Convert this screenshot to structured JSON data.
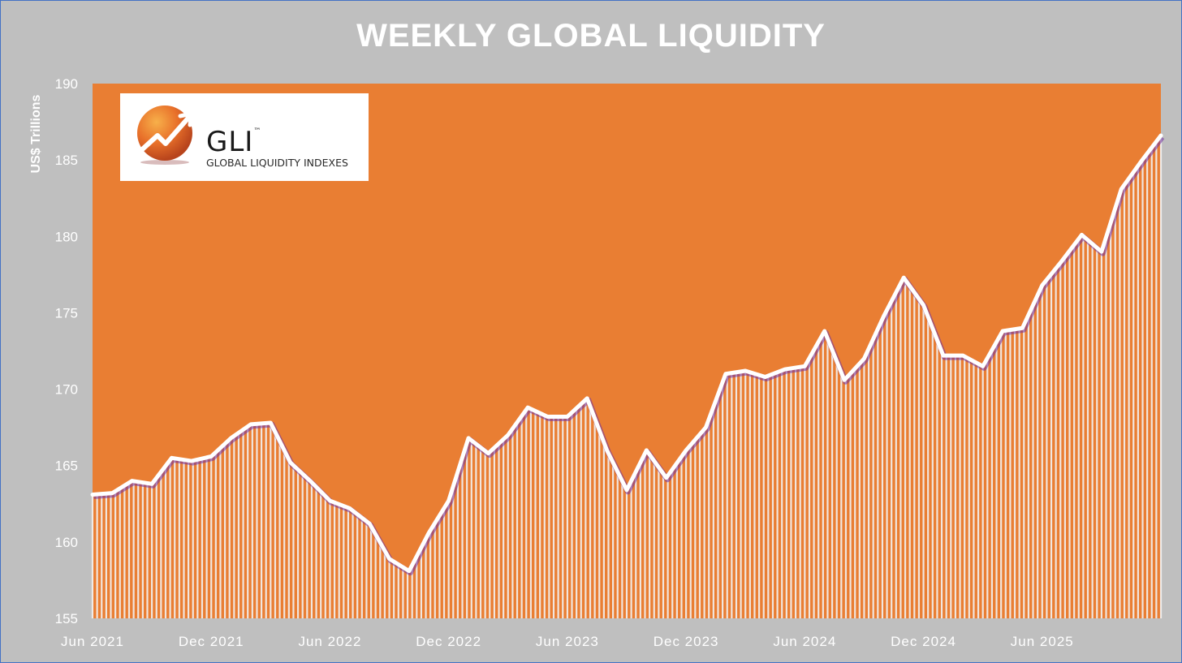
{
  "title": "WEEKLY GLOBAL LIQUIDITY",
  "logo": {
    "name": "GLI",
    "trademark": "™",
    "subtitle": "GLOBAL LIQUIDITY INDEXES"
  },
  "colors": {
    "background": "#bfbfbf",
    "plot_area": "#e97e33",
    "bars": "#f2f2f2",
    "line": "#ffffff",
    "line_shadow": "#7030a0"
  },
  "chart_data": {
    "type": "area",
    "title": "WEEKLY GLOBAL LIQUIDITY",
    "xlabel": "",
    "ylabel": "US$ Trillions",
    "ylim": [
      155,
      190
    ],
    "yticks": [
      155,
      160,
      165,
      170,
      175,
      180,
      185,
      190
    ],
    "xlim": [
      "2021-06",
      "2025-12"
    ],
    "xticks": [
      "Jun 2021",
      "Dec 2021",
      "Jun 2022",
      "Dec 2022",
      "Jun 2023",
      "Dec 2023",
      "Jun 2024",
      "Dec 2024",
      "Jun 2025"
    ],
    "grid": false,
    "legend": "none",
    "series": [
      {
        "x": [
          "2021-06",
          "2021-07",
          "2021-08",
          "2021-09",
          "2021-10",
          "2021-11",
          "2021-12",
          "2022-01",
          "2022-02",
          "2022-03",
          "2022-04",
          "2022-05",
          "2022-06",
          "2022-07",
          "2022-08",
          "2022-09",
          "2022-10",
          "2022-11",
          "2022-12",
          "2023-01",
          "2023-02",
          "2023-03",
          "2023-04",
          "2023-05",
          "2023-06",
          "2023-07",
          "2023-08",
          "2023-09",
          "2023-10",
          "2023-11",
          "2023-12",
          "2024-01",
          "2024-02",
          "2024-03",
          "2024-04",
          "2024-05",
          "2024-06",
          "2024-07",
          "2024-08",
          "2024-09",
          "2024-10",
          "2024-11",
          "2024-12",
          "2025-01",
          "2025-02",
          "2025-03",
          "2025-04",
          "2025-05",
          "2025-06",
          "2025-07",
          "2025-08",
          "2025-09",
          "2025-10",
          "2025-11",
          "2025-12"
        ],
        "values": [
          163.1,
          163.2,
          164.0,
          163.8,
          165.5,
          165.3,
          165.6,
          166.8,
          167.7,
          167.8,
          165.2,
          164.0,
          162.7,
          162.2,
          161.2,
          158.9,
          158.1,
          160.6,
          162.7,
          166.8,
          165.8,
          167.0,
          168.8,
          168.2,
          168.2,
          169.4,
          166.0,
          163.4,
          166.0,
          164.2,
          166.0,
          167.5,
          171.0,
          171.2,
          170.8,
          171.3,
          171.5,
          173.8,
          170.6,
          172.0,
          174.8,
          177.3,
          175.5,
          172.2,
          172.2,
          171.5,
          173.8,
          174.0,
          176.8,
          178.4,
          180.1,
          179.0,
          183.1,
          184.9,
          186.6
        ]
      }
    ]
  }
}
